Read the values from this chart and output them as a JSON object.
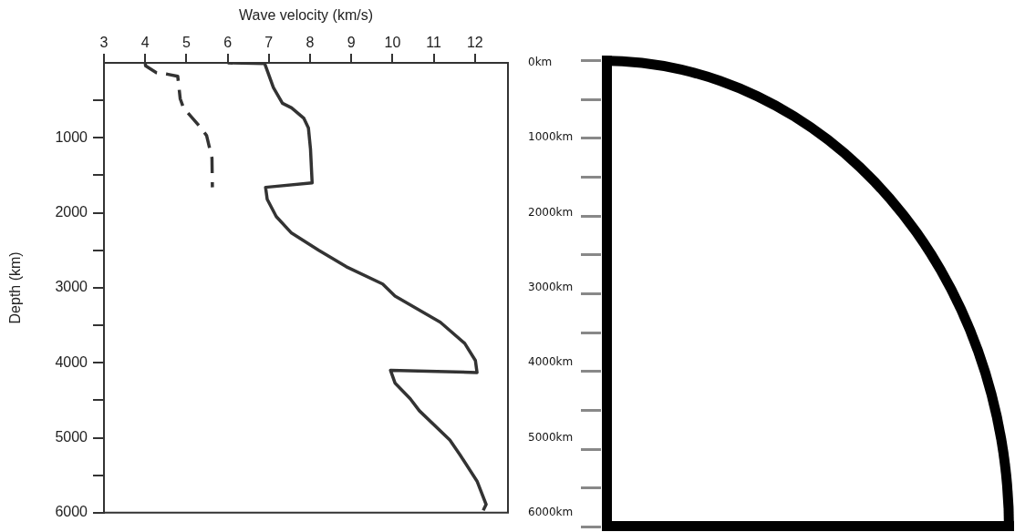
{
  "chart_data": [
    {
      "type": "line",
      "xlabel": "Wave velocity (km/s)",
      "ylabel": "Depth (km)",
      "xlim": [
        3,
        12.8
      ],
      "xticks": [
        3,
        4,
        5,
        6,
        7,
        8,
        9,
        10,
        11,
        12
      ],
      "ylim": [
        6000,
        0
      ],
      "yticks": [
        {
          "value": 500,
          "label": null
        },
        1000,
        {
          "value": 1500,
          "label": null
        },
        2000,
        {
          "value": 2500,
          "label": null
        },
        3000,
        {
          "value": 3500,
          "label": null
        },
        4000,
        {
          "value": 4500,
          "label": null
        },
        5000,
        {
          "value": 5500,
          "label": null
        },
        6000
      ],
      "grid": false,
      "legend": false,
      "marker": "none",
      "series": [
        {
          "color": "#333333",
          "line_style": "solid",
          "x": [
            6.0,
            6.9,
            6.92,
            7.11,
            7.33,
            7.55,
            7.85,
            7.96,
            8.01,
            8.05,
            6.92,
            6.96,
            7.18,
            7.55,
            8.21,
            8.88,
            9.76,
            10.06,
            11.16,
            11.75,
            12.01,
            12.05,
            9.95,
            10.06,
            10.43,
            10.65,
            11.39,
            11.64,
            12.05,
            12.27,
            12.2
          ],
          "values": [
            0,
            10,
            40,
            330,
            540,
            600,
            740,
            870,
            1150,
            1600,
            1660,
            1820,
            2050,
            2270,
            2500,
            2720,
            2950,
            3110,
            3460,
            3740,
            3970,
            4130,
            4100,
            4270,
            4480,
            4640,
            5030,
            5230,
            5580,
            5890,
            5970
          ]
        },
        {
          "color": "#333333",
          "line_style": "dashed",
          "x": [
            4.0,
            4.01,
            4.27,
            4.53,
            4.79,
            4.85,
            4.93,
            5.34,
            5.49,
            5.62,
            5.63
          ],
          "values": [
            0,
            40,
            130,
            150,
            180,
            480,
            600,
            860,
            970,
            1270,
            1660
          ]
        }
      ],
      "y2lim": [
        6000,
        0
      ],
      "y2ticks": [
        {
          "value": 0,
          "label": "0km"
        },
        {
          "value": 1000,
          "label": "1000km"
        },
        {
          "value": 2000,
          "label": "2000km"
        },
        {
          "value": 3000,
          "label": "3000km"
        },
        {
          "value": 4000,
          "label": "4000km"
        },
        {
          "value": 5000,
          "label": "5000km"
        },
        {
          "value": 6000,
          "label": "6000km"
        }
      ]
    }
  ]
}
